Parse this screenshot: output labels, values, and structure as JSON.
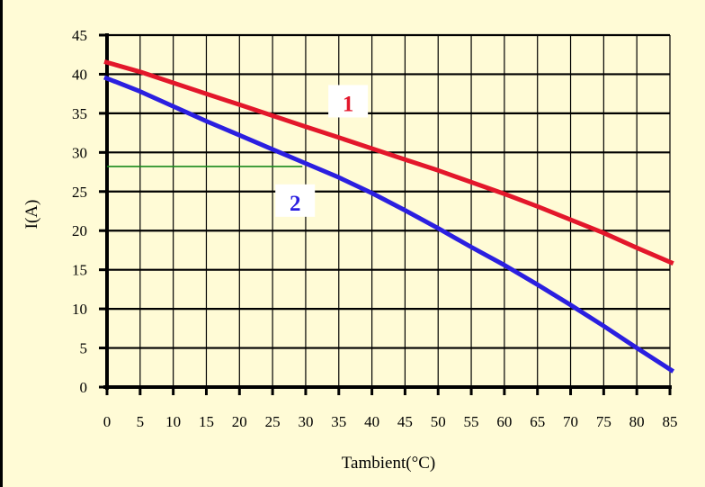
{
  "colors": {
    "background": "#fffbd6",
    "grid": "#000000",
    "series1": "#e3172b",
    "series2": "#2b1fe0",
    "guide": "#1a8a1a",
    "label_box": "#ffffff"
  },
  "chart_data": {
    "type": "line",
    "title": "",
    "xlabel": "Tambient(°C)",
    "ylabel": "I(A)",
    "xlim": [
      0,
      85
    ],
    "ylim": [
      0,
      45
    ],
    "xticks": [
      0,
      5,
      10,
      15,
      20,
      25,
      30,
      35,
      40,
      45,
      50,
      55,
      60,
      65,
      70,
      75,
      80,
      85
    ],
    "yticks": [
      0,
      5,
      10,
      15,
      20,
      25,
      30,
      35,
      40,
      45
    ],
    "x_gridlines": [
      0,
      5,
      10,
      15,
      20,
      25,
      30,
      35,
      40,
      45,
      50,
      55,
      60,
      65,
      70,
      75,
      80,
      85
    ],
    "y_gridlines": [
      0,
      5,
      10,
      15,
      20,
      25,
      30,
      35,
      40,
      45
    ],
    "grid": true,
    "series": [
      {
        "name": "1",
        "color": "#e3172b",
        "x": [
          -0.5,
          5,
          10,
          15,
          20,
          25,
          30,
          35,
          40,
          45,
          50,
          55,
          60,
          65,
          70,
          75,
          80,
          85.5
        ],
        "y": [
          41.6,
          40.3,
          38.9,
          37.5,
          36.1,
          34.7,
          33.3,
          31.9,
          30.5,
          29.1,
          27.7,
          26.2,
          24.7,
          23.1,
          21.4,
          19.7,
          17.8,
          15.8
        ]
      },
      {
        "name": "2",
        "color": "#2b1fe0",
        "x": [
          -0.5,
          5,
          10,
          15,
          20,
          25,
          30,
          35,
          40,
          45,
          50,
          55,
          60,
          65,
          70,
          75,
          80,
          85.5
        ],
        "y": [
          39.6,
          37.8,
          35.9,
          34.0,
          32.2,
          30.4,
          28.6,
          26.8,
          24.8,
          22.6,
          20.3,
          17.9,
          15.6,
          13.1,
          10.5,
          7.8,
          5.0,
          2.0
        ]
      }
    ],
    "annotations": [
      {
        "text": "1",
        "series": "1",
        "x": 36,
        "y": 36.2
      },
      {
        "text": "2",
        "series": "2",
        "x": 28,
        "y": 23.5
      }
    ],
    "guide_line": {
      "x": [
        0,
        29.5
      ],
      "y": [
        28.2,
        28.2
      ],
      "color": "#1a8a1a"
    }
  }
}
